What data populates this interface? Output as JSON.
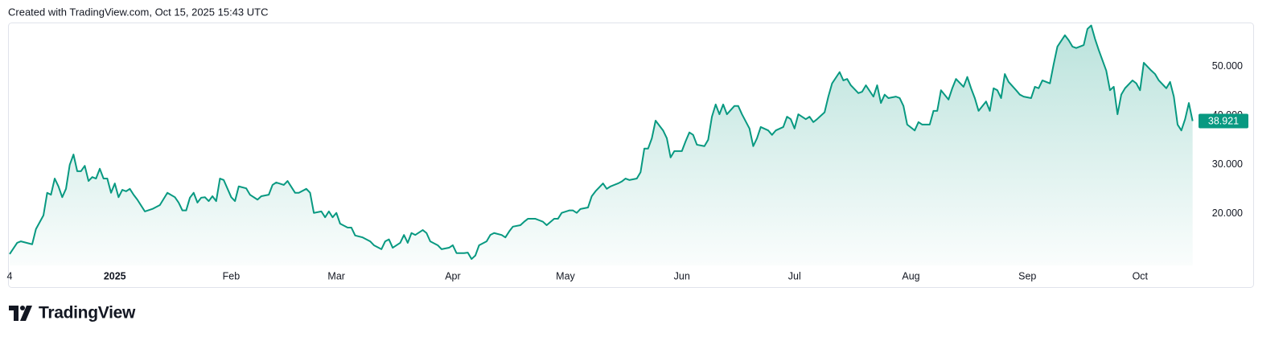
{
  "header": {
    "caption": "Created with TradingView.com, Oct 15, 2025 15:43 UTC"
  },
  "chart_data": {
    "type": "area",
    "color": "#089981",
    "grid": false,
    "xlim": [
      0,
      317
    ],
    "xticks": [
      {
        "value": 0,
        "label": "4"
      },
      {
        "value": 28,
        "label": "2025"
      },
      {
        "value": 59,
        "label": "Feb"
      },
      {
        "value": 87,
        "label": "Mar"
      },
      {
        "value": 118,
        "label": "Apr"
      },
      {
        "value": 148,
        "label": "May"
      },
      {
        "value": 179,
        "label": "Jun"
      },
      {
        "value": 209,
        "label": "Jul"
      },
      {
        "value": 240,
        "label": "Aug"
      },
      {
        "value": 271,
        "label": "Sep"
      },
      {
        "value": 301,
        "label": "Oct"
      }
    ],
    "ylim": [
      9.5,
      59
    ],
    "yticks": [
      {
        "value": 20,
        "label": "20.000"
      },
      {
        "value": 30,
        "label": "30.000"
      },
      {
        "value": 40,
        "label": "40.000"
      },
      {
        "value": 50,
        "label": "50.000"
      }
    ],
    "x": [
      0,
      2,
      3,
      6,
      7,
      9,
      10,
      11,
      12,
      13,
      14,
      15,
      16,
      17,
      18,
      19,
      20,
      21,
      22,
      23,
      24,
      25,
      26,
      27,
      28,
      29,
      30,
      31,
      32,
      33,
      34,
      36,
      38,
      40,
      42,
      44,
      45,
      46,
      47,
      48,
      49,
      50,
      51,
      52,
      53,
      54,
      55,
      56,
      57,
      59,
      60,
      61,
      63,
      64,
      66,
      67,
      69,
      70,
      71,
      73,
      74,
      76,
      77,
      79,
      80,
      81,
      83,
      84,
      85,
      86,
      87,
      88,
      90,
      91,
      92,
      94,
      96,
      97,
      99,
      100,
      101,
      102,
      104,
      105,
      106,
      107,
      108,
      110,
      111,
      112,
      114,
      115,
      117,
      118,
      119,
      121,
      122,
      123,
      124,
      125,
      127,
      128,
      129,
      131,
      132,
      133,
      134,
      136,
      137,
      138,
      140,
      141,
      142,
      143,
      145,
      146,
      147,
      149,
      150,
      151,
      152,
      154,
      155,
      156,
      158,
      159,
      160,
      162,
      163,
      164,
      165,
      167,
      168,
      169,
      170,
      171,
      172,
      174,
      175,
      176,
      177,
      179,
      180,
      181,
      182,
      183,
      185,
      186,
      187,
      188,
      189,
      190,
      191,
      193,
      194,
      195,
      197,
      198,
      199,
      200,
      202,
      203,
      204,
      206,
      207,
      208,
      209,
      210,
      212,
      213,
      214,
      215,
      217,
      218,
      219,
      221,
      222,
      223,
      224,
      226,
      227,
      228,
      230,
      231,
      232,
      233,
      234,
      236,
      237,
      238,
      239,
      241,
      242,
      243,
      245,
      246,
      247,
      248,
      250,
      251,
      252,
      254,
      255,
      256,
      257,
      258,
      260,
      261,
      262,
      263,
      264,
      265,
      266,
      268,
      269,
      270,
      272,
      273,
      274,
      275,
      277,
      278,
      279,
      281,
      282,
      283,
      284,
      286,
      287,
      288,
      289,
      290,
      292,
      293,
      294,
      295,
      296,
      297,
      299,
      300,
      301,
      302,
      304,
      305,
      306,
      308,
      309,
      310,
      311,
      312,
      313,
      314,
      315
    ],
    "values": [
      11.8,
      14.1,
      14.4,
      13.8,
      16.9,
      19.7,
      24.3,
      23.9,
      27.2,
      25.6,
      23.4,
      25.1,
      30.0,
      32.1,
      28.7,
      28.7,
      29.8,
      26.7,
      27.5,
      27.2,
      29.2,
      27.2,
      27.2,
      24.3,
      26.2,
      23.4,
      24.9,
      24.6,
      25.1,
      23.9,
      22.9,
      20.5,
      21.0,
      21.8,
      24.3,
      23.4,
      22.3,
      20.7,
      20.7,
      23.3,
      24.3,
      22.3,
      23.3,
      23.4,
      22.6,
      23.6,
      22.6,
      27.2,
      26.9,
      23.4,
      22.6,
      25.6,
      25.2,
      23.9,
      22.9,
      23.6,
      23.9,
      25.9,
      26.4,
      25.9,
      26.7,
      24.3,
      24.3,
      25.1,
      24.3,
      20.2,
      20.5,
      19.3,
      20.5,
      19.3,
      20.2,
      18.0,
      17.2,
      17.2,
      15.6,
      15.2,
      14.4,
      13.6,
      12.8,
      14.4,
      14.8,
      13.1,
      14.1,
      15.7,
      14.1,
      16.1,
      15.7,
      16.7,
      16.1,
      14.4,
      13.6,
      12.8,
      13.1,
      13.6,
      12.0,
      12.0,
      12.1,
      10.8,
      11.5,
      13.6,
      14.4,
      15.7,
      16.1,
      15.7,
      15.2,
      16.4,
      17.4,
      17.7,
      18.4,
      19.0,
      19.0,
      18.7,
      18.4,
      17.7,
      19.0,
      19.0,
      20.2,
      20.7,
      20.7,
      20.2,
      21.0,
      21.3,
      23.6,
      24.6,
      26.2,
      25.1,
      25.6,
      26.2,
      26.6,
      27.2,
      26.9,
      27.2,
      28.5,
      33.3,
      33.3,
      35.4,
      39.0,
      37.0,
      35.4,
      31.5,
      32.8,
      32.8,
      34.8,
      36.6,
      36.1,
      34.1,
      33.8,
      35.1,
      39.8,
      42.3,
      40.3,
      42.3,
      40.3,
      42.0,
      42.0,
      40.3,
      37.4,
      33.8,
      35.4,
      37.7,
      37.0,
      36.1,
      37.0,
      37.7,
      39.8,
      39.3,
      37.4,
      40.3,
      39.3,
      39.8,
      38.7,
      39.3,
      40.7,
      43.9,
      46.6,
      48.9,
      47.2,
      47.5,
      46.2,
      44.6,
      44.9,
      46.2,
      43.9,
      46.2,
      42.6,
      44.3,
      43.6,
      43.9,
      43.6,
      42.0,
      38.2,
      37.0,
      38.7,
      38.2,
      38.2,
      41.0,
      41.0,
      45.2,
      43.3,
      45.6,
      47.5,
      45.9,
      47.9,
      45.6,
      43.6,
      41.0,
      42.9,
      41.0,
      45.6,
      45.2,
      43.6,
      48.5,
      46.9,
      45.2,
      44.3,
      43.9,
      43.6,
      45.9,
      45.6,
      47.2,
      46.6,
      50.5,
      54.1,
      56.4,
      55.4,
      54.1,
      53.8,
      54.4,
      57.7,
      58.4,
      55.7,
      53.4,
      49.2,
      45.2,
      45.9,
      40.3,
      44.3,
      45.6,
      47.2,
      46.6,
      45.2,
      50.8,
      49.2,
      48.5,
      47.2,
      45.6,
      46.9,
      43.9,
      38.2,
      37.0,
      39.3,
      42.6,
      38.921
    ]
  },
  "footer": {
    "brand": "TradingView"
  }
}
